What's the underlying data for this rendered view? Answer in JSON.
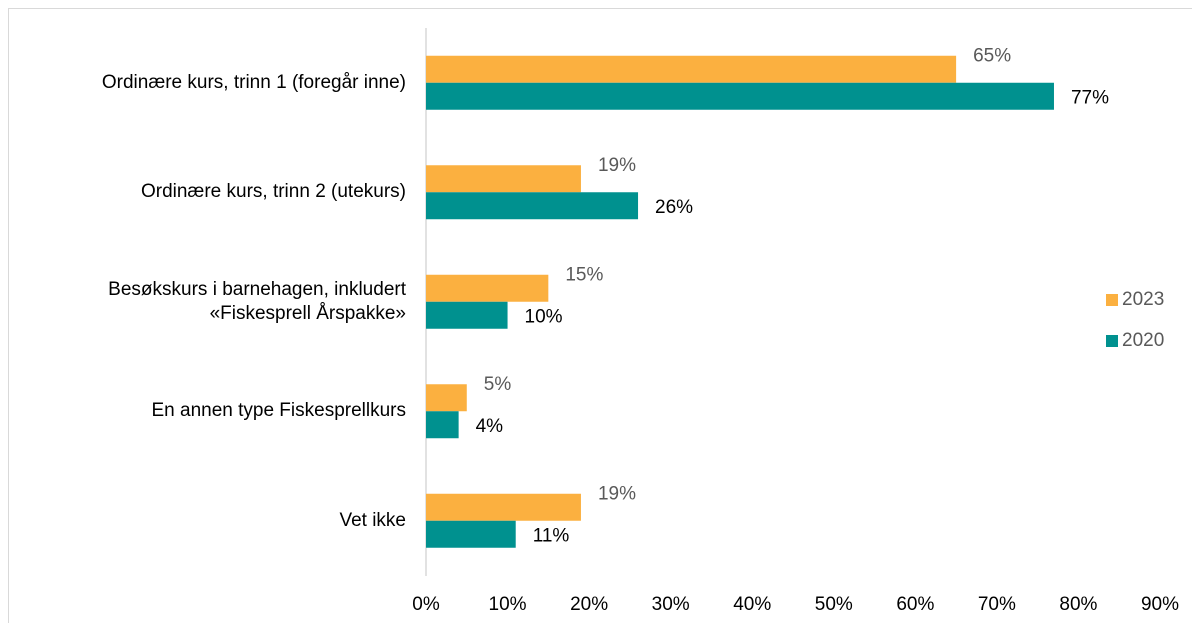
{
  "chart_data": {
    "type": "bar",
    "orientation": "horizontal",
    "categories": [
      "Ordinære kurs, trinn 1 (foregår inne)",
      "Ordinære kurs, trinn 2 (utekurs)",
      "Besøkskurs i barnehagen, inkludert\n«Fiskesprell Årspakke»",
      "En annen type Fiskesprellkurs",
      "Vet ikke"
    ],
    "series": [
      {
        "name": "2023",
        "color": "#fbb040",
        "label_color": "#595959",
        "values": [
          65,
          19,
          15,
          5,
          19
        ],
        "value_labels": [
          "65%",
          "19%",
          "15%",
          "5%",
          "19%"
        ]
      },
      {
        "name": "2020",
        "color": "#00918f",
        "label_color": "#000000",
        "values": [
          77,
          26,
          10,
          4,
          11
        ],
        "value_labels": [
          "77%",
          "26%",
          "10%",
          "4%",
          "11%"
        ]
      }
    ],
    "xlim": [
      0,
      90
    ],
    "xticks": [
      {
        "value": 0,
        "label": "0%"
      },
      {
        "value": 10,
        "label": "10%"
      },
      {
        "value": 20,
        "label": "20%"
      },
      {
        "value": 30,
        "label": "30%"
      },
      {
        "value": 40,
        "label": "40%"
      },
      {
        "value": 50,
        "label": "50%"
      },
      {
        "value": 60,
        "label": "60%"
      },
      {
        "value": 70,
        "label": "70%"
      },
      {
        "value": 80,
        "label": "80%"
      },
      {
        "value": 90,
        "label": "90%"
      }
    ],
    "grid": false,
    "legend": "right"
  }
}
